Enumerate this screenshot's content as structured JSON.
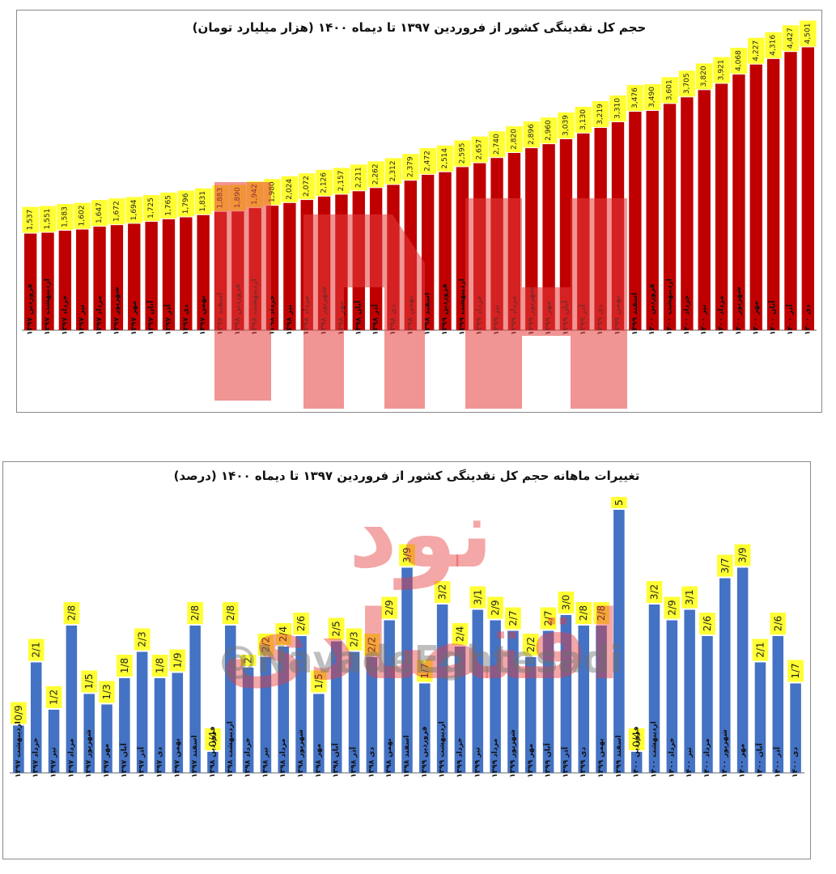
{
  "chart_data": [
    {
      "type": "bar",
      "title": "حجم کل نقدینگی کشور از فروردین ۱۳۹۷ تا دیماه ۱۴۰۰ (هزار میلیارد تومان)",
      "categories": [
        "فروردین ۱۳۹۷",
        "اردیبهشت ۱۳۹۷",
        "خرداد ۱۳۹۷",
        "تیر ۱۳۹۷",
        "مرداد ۱۳۹۷",
        "شهریور ۱۳۹۷",
        "مهر ۱۳۹۷",
        "آبان ۱۳۹۷",
        "آذر ۱۳۹۷",
        "دی ۱۳۹۷",
        "بهمن ۱۳۹۷",
        "اسفند ۱۳۹۷",
        "فروردین ۱۳۹۸",
        "اردیبهشت ۱۳۹۸",
        "خرداد ۱۳۹۸",
        "تیر ۱۳۹۸",
        "مرداد ۱۳۹۸",
        "شهریور ۱۳۹۸",
        "مهر ۱۳۹۸",
        "آبان ۱۳۹۸",
        "آذر ۱۳۹۸",
        "دی ۱۳۹۸",
        "بهمن ۱۳۹۸",
        "اسفند ۱۳۹۸",
        "فروردین ۱۳۹۹",
        "اردیبهشت ۱۳۹۹",
        "خرداد ۱۳۹۹",
        "تیر ۱۳۹۹",
        "مرداد ۱۳۹۹",
        "شهریور ۱۳۹۹",
        "مهر ۱۳۹۹",
        "آبان ۱۳۹۹",
        "آذر ۱۳۹۹",
        "دی ۱۳۹۹",
        "بهمن ۱۳۹۹",
        "اسفند ۱۳۹۹",
        "فروردین ۱۴۰۰",
        "اردیبهشت ۱۴۰۰",
        "خرداد ۱۴۰۰",
        "تیر ۱۴۰۰",
        "مرداد ۱۴۰۰",
        "شهریور ۱۴۰۰",
        "مهر ۱۴۰۰",
        "آبان ۱۴۰۰",
        "آذر ۱۴۰۰",
        "دی ۱۴۰۰"
      ],
      "values": [
        1537,
        1551,
        1583,
        1602,
        1647,
        1672,
        1694,
        1725,
        1765,
        1796,
        1831,
        1883,
        1890,
        1942,
        1980,
        2024,
        2072,
        2126,
        2157,
        2211,
        2262,
        2312,
        2379,
        2472,
        2514,
        2595,
        2657,
        2740,
        2820,
        2896,
        2960,
        3039,
        3130,
        3219,
        3310,
        3476,
        3490,
        3601,
        3705,
        3820,
        3921,
        4068,
        4227,
        4316,
        4427,
        4501
      ],
      "value_labels": [
        "1,537",
        "1,551",
        "1,583",
        "1,602",
        "1,647",
        "1,672",
        "1,694",
        "1,725",
        "1,765",
        "1,796",
        "1,831",
        "1,883",
        "1,890",
        "1,942",
        "1,980",
        "2,024",
        "2,072",
        "2,126",
        "2,157",
        "2,211",
        "2,262",
        "2,312",
        "2,379",
        "2,472",
        "2,514",
        "2,595",
        "2,657",
        "2,740",
        "2,820",
        "2,896",
        "2,960",
        "3,039",
        "3,130",
        "3,219",
        "3,310",
        "3,476",
        "3,490",
        "3,601",
        "3,705",
        "3,820",
        "3,921",
        "4,068",
        "4,227",
        "4,316",
        "4,427",
        "4,501"
      ],
      "ylim": [
        0,
        4700
      ],
      "grid": false,
      "bar_color": "#c00000",
      "label_bg_color": "#ffff33"
    },
    {
      "type": "bar",
      "title": "تغییرات ماهانه حجم کل نقدینگی کشور از فروردین ۱۳۹۷ تا دیماه ۱۴۰۰ (درصد)",
      "categories": [
        "اردیبهشت ۱۳۹۷",
        "خرداد ۱۳۹۷",
        "تیر ۱۳۹۷",
        "مرداد ۱۳۹۷",
        "شهریور ۱۳۹۷",
        "مهر ۱۳۹۷",
        "آبان ۱۳۹۷",
        "آذر ۱۳۹۷",
        "دی ۱۳۹۷",
        "بهمن ۱۳۹۷",
        "اسفند ۱۳۹۷",
        "فروردین ۱۳۹۸",
        "اردیبهشت ۱۳۹۸",
        "خرداد ۱۳۹۸",
        "تیر ۱۳۹۸",
        "مرداد ۱۳۹۸",
        "شهریور ۱۳۹۸",
        "مهر ۱۳۹۸",
        "آبان ۱۳۹۸",
        "آذر ۱۳۹۸",
        "دی ۱۳۹۸",
        "بهمن ۱۳۹۸",
        "اسفند ۱۳۹۸",
        "فروردین ۱۳۹۹",
        "اردیبهشت ۱۳۹۹",
        "خرداد ۱۳۹۹",
        "تیر ۱۳۹۹",
        "مرداد ۱۳۹۹",
        "شهریور ۱۳۹۹",
        "مهر ۱۳۹۹",
        "آبان ۱۳۹۹",
        "آذر ۱۳۹۹",
        "دی ۱۳۹۹",
        "بهمن ۱۳۹۹",
        "اسفند ۱۳۹۹",
        "فروردین ۱۴۰۰",
        "اردیبهشت ۱۴۰۰",
        "خرداد ۱۴۰۰",
        "تیر ۱۴۰۰",
        "مرداد ۱۴۰۰",
        "شهریور ۱۴۰۰",
        "مهر ۱۴۰۰",
        "آبان ۱۴۰۰",
        "آذر ۱۴۰۰",
        "دی ۱۴۰۰"
      ],
      "values": [
        0.9,
        2.1,
        1.2,
        2.8,
        1.5,
        1.3,
        1.8,
        2.3,
        1.8,
        1.9,
        2.8,
        0.4,
        2.8,
        2.0,
        2.2,
        2.4,
        2.6,
        1.5,
        2.5,
        2.3,
        2.2,
        2.9,
        3.9,
        1.7,
        3.2,
        2.4,
        3.1,
        2.9,
        2.7,
        2.2,
        2.7,
        3.0,
        2.8,
        2.8,
        5.0,
        0.4,
        3.2,
        2.9,
        3.1,
        2.6,
        3.7,
        3.9,
        2.1,
        2.6,
        1.7
      ],
      "value_labels": [
        "0/9",
        "2/1",
        "1/2",
        "2/8",
        "1/5",
        "1/3",
        "1/8",
        "2/3",
        "1/8",
        "1/9",
        "2/8",
        "0/4",
        "2/8",
        "2",
        "2/2",
        "2/4",
        "2/6",
        "1/5",
        "2/5",
        "2/3",
        "2/2",
        "2/9",
        "3/9",
        "1/7",
        "3/2",
        "2/4",
        "3/1",
        "2/9",
        "2/7",
        "2/2",
        "2/7",
        "3/0",
        "2/8",
        "2/8",
        "5",
        "0/4",
        "3/2",
        "2/9",
        "3/1",
        "2/6",
        "3/7",
        "3/9",
        "2/1",
        "2/6",
        "1/7"
      ],
      "ylim": [
        0,
        5.2
      ],
      "grid": false,
      "bar_color": "#4472c4",
      "label_bg_color": "#ffff33"
    }
  ],
  "watermark": {
    "main_text": "نود اقتصادی",
    "handle_text": "@NavadeEghtesadi",
    "color": "#e63c3c"
  }
}
